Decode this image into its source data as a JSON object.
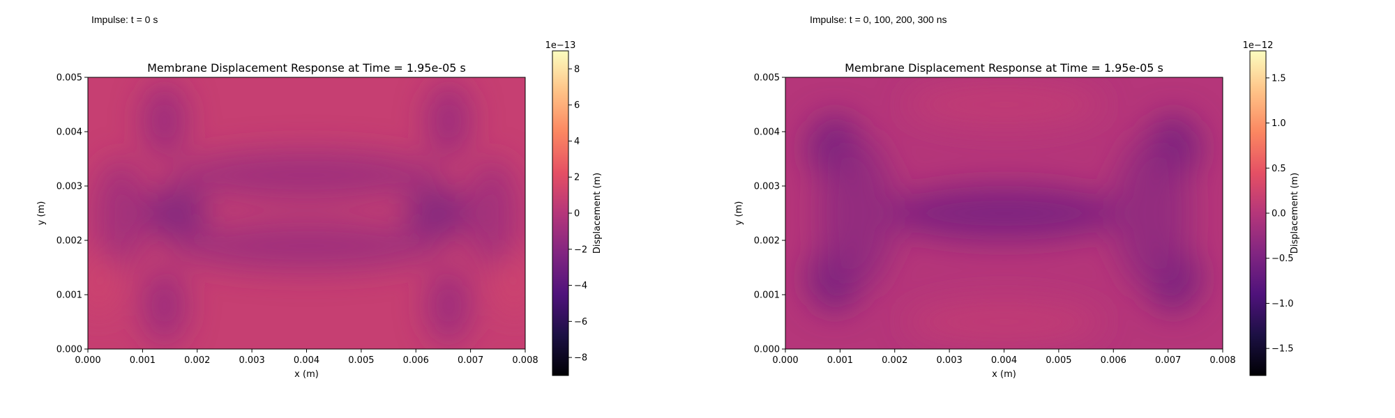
{
  "panels": [
    {
      "label": "Impulse: t = 0 s",
      "chart_data": {
        "type": "heatmap",
        "title": "Membrane Displacement Response at Time = 1.95e-05 s",
        "xlabel": "x (m)",
        "ylabel": "y (m)",
        "xlim": [
          0.0,
          0.008
        ],
        "ylim": [
          0.0,
          0.005
        ],
        "xticks": [
          "0.000",
          "0.001",
          "0.002",
          "0.003",
          "0.004",
          "0.005",
          "0.006",
          "0.007",
          "0.008"
        ],
        "yticks": [
          "0.000",
          "0.001",
          "0.002",
          "0.003",
          "0.004",
          "0.005"
        ],
        "colormap": "magma",
        "colorbar": {
          "label": "Displacement (m)",
          "offset_text": "1e−13",
          "range": [
            -9,
            9
          ],
          "ticks": [
            "−8",
            "−6",
            "−4",
            "−2",
            "0",
            "2",
            "4",
            "6",
            "8"
          ],
          "tick_values": [
            -8,
            -6,
            -4,
            -2,
            0,
            2,
            4,
            6,
            8
          ]
        },
        "base_value": 0.8,
        "features": [
          {
            "shape": "ellipse",
            "x": 0.0016,
            "y": 0.0025,
            "rx": 0.0006,
            "ry": 0.0005,
            "value": -2.5
          },
          {
            "shape": "ellipse",
            "x": 0.0064,
            "y": 0.0025,
            "rx": 0.0006,
            "ry": 0.0005,
            "value": -2.5
          },
          {
            "shape": "ellipse",
            "x": 0.0014,
            "y": 0.0042,
            "rx": 0.0004,
            "ry": 0.0007,
            "value": -1.3
          },
          {
            "shape": "ellipse",
            "x": 0.0014,
            "y": 0.0008,
            "rx": 0.0004,
            "ry": 0.0007,
            "value": -1.3
          },
          {
            "shape": "ellipse",
            "x": 0.0066,
            "y": 0.0042,
            "rx": 0.0004,
            "ry": 0.0007,
            "value": -1.3
          },
          {
            "shape": "ellipse",
            "x": 0.0066,
            "y": 0.0008,
            "rx": 0.0004,
            "ry": 0.0007,
            "value": -1.3
          },
          {
            "shape": "ellipse",
            "x": 0.004,
            "y": 0.0032,
            "rx": 0.0025,
            "ry": 0.00045,
            "value": -1.2
          },
          {
            "shape": "ellipse",
            "x": 0.004,
            "y": 0.0019,
            "rx": 0.0025,
            "ry": 0.00045,
            "value": -1.2
          },
          {
            "shape": "ellipse",
            "x": 0.0006,
            "y": 0.0025,
            "rx": 0.0005,
            "ry": 0.001,
            "value": -1.0
          },
          {
            "shape": "ellipse",
            "x": 0.0074,
            "y": 0.0025,
            "rx": 0.0005,
            "ry": 0.001,
            "value": -1.0
          },
          {
            "shape": "ellipse",
            "x": 0.0002,
            "y": 0.0012,
            "rx": 0.0003,
            "ry": 0.0006,
            "value": 1.2
          },
          {
            "shape": "ellipse",
            "x": 0.0078,
            "y": 0.0012,
            "rx": 0.0003,
            "ry": 0.0006,
            "value": 1.2
          }
        ]
      }
    },
    {
      "label": "Impulse: t = 0, 100, 200, 300 ns",
      "chart_data": {
        "type": "heatmap",
        "title": "Membrane Displacement Response at Time = 1.95e-05 s",
        "xlabel": "x (m)",
        "ylabel": "y (m)",
        "xlim": [
          0.0,
          0.008
        ],
        "ylim": [
          0.0,
          0.005
        ],
        "xticks": [
          "0.000",
          "0.001",
          "0.002",
          "0.003",
          "0.004",
          "0.005",
          "0.006",
          "0.007",
          "0.008"
        ],
        "yticks": [
          "0.000",
          "0.001",
          "0.002",
          "0.003",
          "0.004",
          "0.005"
        ],
        "colormap": "magma",
        "colorbar": {
          "label": "Displacement (m)",
          "offset_text": "1e−12",
          "range": [
            -1.8,
            1.8
          ],
          "ticks": [
            "−1.5",
            "−1.0",
            "−0.5",
            "0.0",
            "0.5",
            "1.0",
            "1.5"
          ],
          "tick_values": [
            -1.5,
            -1.0,
            -0.5,
            0.0,
            0.5,
            1.0,
            1.5
          ]
        },
        "base_value": 0.0,
        "features": [
          {
            "shape": "ellipse",
            "x": 0.0009,
            "y": 0.0037,
            "rx": 0.0005,
            "ry": 0.0006,
            "value": -0.6
          },
          {
            "shape": "ellipse",
            "x": 0.0009,
            "y": 0.0013,
            "rx": 0.0005,
            "ry": 0.0006,
            "value": -0.6
          },
          {
            "shape": "ellipse",
            "x": 0.0071,
            "y": 0.0037,
            "rx": 0.0005,
            "ry": 0.0006,
            "value": -0.6
          },
          {
            "shape": "ellipse",
            "x": 0.0071,
            "y": 0.0013,
            "rx": 0.0005,
            "ry": 0.0006,
            "value": -0.6
          },
          {
            "shape": "ellipse",
            "x": 0.004,
            "y": 0.0025,
            "rx": 0.0022,
            "ry": 0.0005,
            "value": -0.55
          },
          {
            "shape": "ellipse",
            "x": 0.0013,
            "y": 0.0025,
            "rx": 0.0007,
            "ry": 0.0014,
            "value": -0.35
          },
          {
            "shape": "ellipse",
            "x": 0.0067,
            "y": 0.0025,
            "rx": 0.0007,
            "ry": 0.0014,
            "value": -0.35
          },
          {
            "shape": "ellipse",
            "x": 0.004,
            "y": 0.0045,
            "rx": 0.0018,
            "ry": 0.0004,
            "value": 0.12
          },
          {
            "shape": "ellipse",
            "x": 0.004,
            "y": 0.0005,
            "rx": 0.0018,
            "ry": 0.0004,
            "value": 0.12
          }
        ]
      }
    }
  ]
}
